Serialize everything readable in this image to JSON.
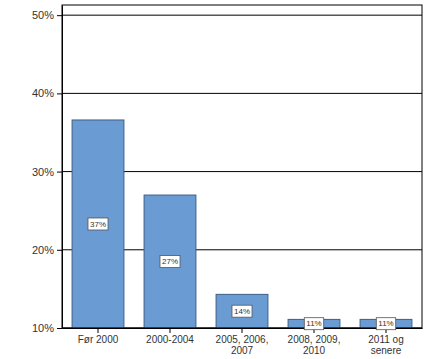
{
  "chart_data": {
    "type": "bar",
    "categories": [
      "Før 2000",
      "2000-2004",
      "2005, 2006, 2007",
      "2008, 2009, 2010",
      "2011 og senere"
    ],
    "values": [
      36.6,
      27,
      14.3,
      11.1,
      11.1
    ],
    "value_labels": [
      "37%",
      "27%",
      "14%",
      "11%",
      "11%"
    ],
    "data_labels": true,
    "color": "#6a9bd3",
    "ylim": [
      10,
      51.3
    ],
    "yticks": [
      {
        "value": 10,
        "label": "10%"
      },
      {
        "value": 20,
        "label": "20%"
      },
      {
        "value": 30,
        "label": "30%"
      },
      {
        "value": 40,
        "label": "40%"
      },
      {
        "value": 50,
        "label": "50%"
      }
    ],
    "grid": true
  }
}
